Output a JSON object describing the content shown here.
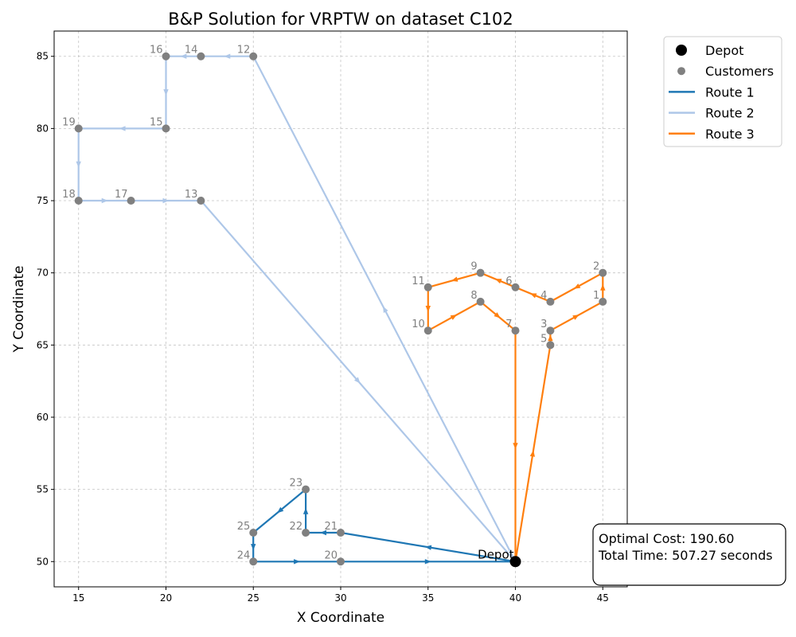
{
  "chart_data": {
    "type": "scatter",
    "title": "B&P Solution for VRPTW on dataset C102",
    "xlabel": "X Coordinate",
    "ylabel": "Y Coordinate",
    "xlim": [
      13.6,
      46.4
    ],
    "ylim": [
      48.25,
      86.75
    ],
    "xticks": [
      15,
      20,
      25,
      30,
      35,
      40,
      45
    ],
    "yticks": [
      50,
      55,
      60,
      65,
      70,
      75,
      80,
      85
    ],
    "grid": true,
    "legend_position": "outside-top-right",
    "depot": {
      "label": "Depot",
      "x": 40,
      "y": 50,
      "color": "#000000"
    },
    "customers": [
      {
        "id": "1",
        "x": 45,
        "y": 68
      },
      {
        "id": "2",
        "x": 45,
        "y": 70
      },
      {
        "id": "3",
        "x": 42,
        "y": 66
      },
      {
        "id": "4",
        "x": 42,
        "y": 68
      },
      {
        "id": "5",
        "x": 42,
        "y": 65
      },
      {
        "id": "6",
        "x": 40,
        "y": 69
      },
      {
        "id": "7",
        "x": 40,
        "y": 66
      },
      {
        "id": "8",
        "x": 38,
        "y": 68
      },
      {
        "id": "9",
        "x": 38,
        "y": 70
      },
      {
        "id": "10",
        "x": 35,
        "y": 66
      },
      {
        "id": "11",
        "x": 35,
        "y": 69
      },
      {
        "id": "12",
        "x": 25,
        "y": 85
      },
      {
        "id": "13",
        "x": 22,
        "y": 75
      },
      {
        "id": "14",
        "x": 22,
        "y": 85
      },
      {
        "id": "15",
        "x": 20,
        "y": 80
      },
      {
        "id": "16",
        "x": 20,
        "y": 85
      },
      {
        "id": "17",
        "x": 18,
        "y": 75
      },
      {
        "id": "18",
        "x": 15,
        "y": 75
      },
      {
        "id": "19",
        "x": 15,
        "y": 80
      },
      {
        "id": "20",
        "x": 30,
        "y": 50
      },
      {
        "id": "21",
        "x": 30,
        "y": 52
      },
      {
        "id": "22",
        "x": 28,
        "y": 52
      },
      {
        "id": "23",
        "x": 28,
        "y": 55
      },
      {
        "id": "24",
        "x": 25,
        "y": 50
      },
      {
        "id": "25",
        "x": 25,
        "y": 52
      }
    ],
    "customer_color": "#808080",
    "routes": [
      {
        "name": "Route 1",
        "color": "#1f77b4",
        "path": [
          "Depot",
          "21",
          "22",
          "23",
          "25",
          "24",
          "20",
          "Depot"
        ]
      },
      {
        "name": "Route 2",
        "color": "#aec7e8",
        "path": [
          "Depot",
          "12",
          "14",
          "16",
          "15",
          "19",
          "18",
          "17",
          "13",
          "Depot"
        ]
      },
      {
        "name": "Route 3",
        "color": "#ff7f0e",
        "path": [
          "Depot",
          "5",
          "3",
          "1",
          "2",
          "4",
          "6",
          "9",
          "11",
          "10",
          "8",
          "7",
          "Depot"
        ]
      }
    ],
    "legend": [
      {
        "label": "Depot",
        "kind": "depot"
      },
      {
        "label": "Customers",
        "kind": "customer"
      },
      {
        "label": "Route 1",
        "kind": "route",
        "color": "#1f77b4"
      },
      {
        "label": "Route 2",
        "kind": "route",
        "color": "#aec7e8"
      },
      {
        "label": "Route 3",
        "kind": "route",
        "color": "#ff7f0e"
      }
    ],
    "annotation": {
      "cost_text": "Optimal Cost: 190.60",
      "time_text": "Total Time: 507.27 seconds"
    }
  }
}
